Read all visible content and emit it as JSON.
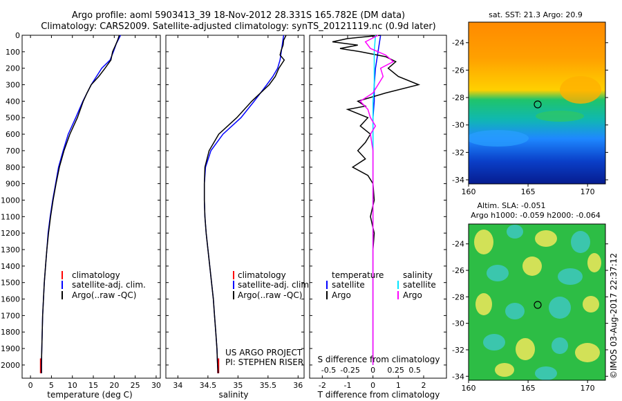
{
  "header": {
    "line1": "Argo profile: aoml 5903413_39 18-Nov-2012 28.331S 165.782E (DM data)",
    "line2": "Climatology: CARS2009. Satellite-adjusted climatology: synTS_20121119.nc (0.9d later)"
  },
  "colors": {
    "climatology": "#ff0000",
    "satellite": "#0000ff",
    "argo": "#000000",
    "argo_salinity": "#ff00ff",
    "satellite_salinity": "#00e5ff"
  },
  "chart_data": [
    {
      "type": "line",
      "panel": "temperature",
      "xlabel": "temperature (deg C)",
      "ylabel": "",
      "xlim": [
        -2,
        31
      ],
      "ylim": [
        2080,
        0
      ],
      "xticks": [
        "0",
        "5",
        "10",
        "15",
        "20",
        "25",
        "30"
      ],
      "xtick_values": [
        0,
        5,
        10,
        15,
        20,
        25,
        30
      ],
      "yticks": [
        "0",
        "100",
        "200",
        "300",
        "400",
        "500",
        "600",
        "700",
        "800",
        "900",
        "1000",
        "1100",
        "1200",
        "1300",
        "1400",
        "1500",
        "1600",
        "1700",
        "1800",
        "1900",
        "2000"
      ],
      "ytick_values": [
        0,
        100,
        200,
        300,
        400,
        500,
        600,
        700,
        800,
        900,
        1000,
        1100,
        1200,
        1300,
        1400,
        1500,
        1600,
        1700,
        1800,
        1900,
        2000
      ],
      "legend": {
        "placement": "lower-center",
        "entries": [
          "climatology",
          "satellite-adj. clim.",
          "Argo(..raw -QC)"
        ]
      },
      "series": [
        {
          "name": "climatology",
          "color": "#ff0000",
          "pressure": [
            1960,
            2050
          ],
          "values": [
            2.5,
            2.5
          ]
        },
        {
          "name": "satellite-adj. clim.",
          "color": "#0000ff",
          "pressure": [
            0,
            50,
            100,
            150,
            200,
            300,
            400,
            500,
            600,
            700,
            800,
            900,
            1000,
            1100,
            1200,
            1300,
            1400,
            1500,
            1600,
            1700,
            1800,
            1900,
            2000,
            2050
          ],
          "values": [
            21.5,
            20.5,
            19.8,
            19.0,
            17.0,
            14.5,
            12.5,
            10.8,
            9.0,
            7.8,
            6.7,
            6.0,
            5.3,
            4.7,
            4.2,
            3.9,
            3.6,
            3.3,
            3.1,
            2.9,
            2.8,
            2.7,
            2.6,
            2.6
          ]
        },
        {
          "name": "Argo(..raw -QC)",
          "color": "#000000",
          "pressure": [
            0,
            30,
            60,
            100,
            150,
            200,
            250,
            300,
            350,
            400,
            500,
            600,
            700,
            800,
            900,
            1000,
            1100,
            1200,
            1300,
            1400,
            1500,
            1600,
            1700,
            1800,
            1900,
            2000,
            2050
          ],
          "values": [
            21.2,
            20.8,
            20.3,
            19.6,
            19.2,
            17.8,
            16.3,
            14.5,
            13.5,
            12.6,
            11.2,
            9.4,
            8.0,
            6.9,
            6.1,
            5.4,
            4.8,
            4.3,
            3.9,
            3.6,
            3.3,
            3.1,
            2.9,
            2.8,
            2.7,
            2.6,
            2.6
          ]
        }
      ]
    },
    {
      "type": "line",
      "panel": "salinity",
      "xlabel": "salinity",
      "xlim": [
        33.8,
        36.1
      ],
      "ylim": [
        2080,
        0
      ],
      "xticks": [
        "34",
        "34.5",
        "35",
        "35.5",
        "36"
      ],
      "xtick_values": [
        34,
        34.5,
        35,
        35.5,
        36
      ],
      "legend": {
        "placement": "lower-center",
        "entries": [
          "climatology",
          "satellite-adj. clim.",
          "Argo(..raw -QC)"
        ]
      },
      "annotations": [
        "US ARGO PROJECT",
        "PI: STEPHEN RISER"
      ],
      "series": [
        {
          "name": "climatology",
          "color": "#ff0000",
          "pressure": [
            1960,
            2050
          ],
          "values": [
            34.67,
            34.67
          ]
        },
        {
          "name": "satellite-adj. clim.",
          "color": "#0000ff",
          "pressure": [
            0,
            50,
            100,
            150,
            200,
            250,
            300,
            400,
            500,
            600,
            700,
            800,
            900,
            1000,
            1100,
            1200,
            1300,
            1400,
            1500,
            1600,
            1700,
            1800,
            1900,
            2000,
            2050
          ],
          "values": [
            35.76,
            35.74,
            35.72,
            35.7,
            35.66,
            35.58,
            35.48,
            35.27,
            35.05,
            34.75,
            34.55,
            34.46,
            34.44,
            34.44,
            34.45,
            34.47,
            34.5,
            34.53,
            34.56,
            34.59,
            34.61,
            34.63,
            34.65,
            34.66,
            34.67
          ]
        },
        {
          "name": "Argo(..raw -QC)",
          "color": "#000000",
          "pressure": [
            0,
            30,
            60,
            90,
            120,
            150,
            200,
            250,
            300,
            400,
            500,
            600,
            700,
            800,
            900,
            1000,
            1100,
            1200,
            1300,
            1400,
            1500,
            1600,
            1700,
            1800,
            1900,
            2000,
            2050
          ],
          "values": [
            35.8,
            35.76,
            35.75,
            35.72,
            35.7,
            35.77,
            35.68,
            35.62,
            35.52,
            35.23,
            34.98,
            34.68,
            34.52,
            34.45,
            34.44,
            34.44,
            34.45,
            34.47,
            34.5,
            34.53,
            34.56,
            34.59,
            34.61,
            34.63,
            34.65,
            34.66,
            34.67
          ]
        }
      ]
    },
    {
      "type": "line",
      "panel": "difference",
      "xlabel": "T difference from climatology",
      "xlabel_top": "S difference from climatology",
      "xlim": [
        -2.5,
        2.9
      ],
      "ylim": [
        2080,
        0
      ],
      "xticks": [
        "-2",
        "-1",
        "0",
        "1",
        "2"
      ],
      "xtick_values": [
        -2,
        -1,
        0,
        1,
        2
      ],
      "sticks": [
        "-0.5",
        "-0.25",
        "0",
        "0.25",
        "0.5"
      ],
      "stick_values": [
        -1.75,
        -0.9,
        0,
        0.9,
        1.65
      ],
      "legend": {
        "placement": "lower-center",
        "temperature": {
          "title": "temperature",
          "entries": [
            "satellite",
            "Argo"
          ]
        },
        "salinity": {
          "title": "salinity",
          "entries": [
            "satellite",
            "Argo"
          ]
        }
      },
      "series": [
        {
          "name": "temperature satellite",
          "color": "#0000ff",
          "pressure": [
            0,
            100,
            200,
            300,
            400,
            500,
            600,
            700,
            800,
            900,
            1000,
            1200,
            1400,
            1600,
            1800,
            2000
          ],
          "values": [
            0.3,
            0.2,
            0.1,
            0.05,
            0.05,
            0,
            0,
            0,
            0,
            0,
            0,
            0,
            0,
            0,
            0,
            0
          ]
        },
        {
          "name": "temperature Argo",
          "color": "#000000",
          "pressure": [
            0,
            20,
            40,
            60,
            80,
            100,
            130,
            160,
            200,
            250,
            300,
            350,
            400,
            430,
            450,
            500,
            550,
            600,
            650,
            700,
            750,
            800,
            850,
            900,
            1000,
            1100,
            1200,
            1300,
            1400,
            1600,
            1800,
            2000
          ],
          "values": [
            0.3,
            -1.0,
            -1.6,
            -0.6,
            -1.3,
            -0.5,
            0.5,
            0.9,
            0.6,
            1.0,
            1.8,
            0.5,
            -0.6,
            -0.3,
            -1.0,
            -0.2,
            -0.5,
            -0.1,
            -0.3,
            -0.6,
            -0.3,
            -0.8,
            -0.2,
            0,
            0.05,
            -0.1,
            0.05,
            0,
            0,
            0,
            0,
            0
          ]
        },
        {
          "name": "salinity satellite",
          "color": "#00e5ff",
          "pressure": [
            0,
            100,
            200,
            300,
            400,
            500,
            600,
            800,
            1000,
            1200,
            1500,
            1800,
            2000
          ],
          "values": [
            0.1,
            0.05,
            0.05,
            0.05,
            0,
            0,
            0,
            0,
            0,
            0,
            0,
            0,
            0
          ]
        },
        {
          "name": "salinity Argo",
          "color": "#ff00ff",
          "pressure": [
            0,
            40,
            80,
            120,
            160,
            200,
            250,
            300,
            350,
            400,
            450,
            500,
            550,
            600,
            700,
            800,
            900,
            1000,
            1200,
            1500,
            1800,
            2000
          ],
          "values": [
            0.2,
            -0.3,
            -0.1,
            0.5,
            0.8,
            0.3,
            0.4,
            0.2,
            0,
            -0.5,
            -0.2,
            -0.1,
            0.1,
            -0.1,
            0,
            0,
            0,
            0,
            0,
            0,
            0,
            0
          ]
        }
      ]
    },
    {
      "type": "heatmap",
      "panel": "sst-map",
      "title": "sat. SST: 21.3  Argo: 20.9",
      "xlim": [
        160,
        171.5
      ],
      "ylim": [
        -34.3,
        -22.5
      ],
      "xticks": [
        "160",
        "165",
        "170"
      ],
      "xtick_values": [
        160,
        165,
        170
      ],
      "yticks": [
        "-24",
        "-26",
        "-28",
        "-30",
        "-32",
        "-34"
      ],
      "ytick_values": [
        -24,
        -26,
        -28,
        -30,
        -32,
        -34
      ],
      "marker": {
        "lon": 165.78,
        "lat": -28.33
      }
    },
    {
      "type": "heatmap",
      "panel": "sla-map",
      "title": "Altim. SLA: -0.051",
      "subtitle": "Argo h1000: -0.059  h2000: -0.064",
      "xlim": [
        160,
        171.5
      ],
      "ylim": [
        -34.3,
        -22.5
      ],
      "xticks": [
        "160",
        "165",
        "170"
      ],
      "xtick_values": [
        160,
        165,
        170
      ],
      "yticks": [
        "-24",
        "-26",
        "-28",
        "-30",
        "-32",
        "-34"
      ],
      "ytick_values": [
        -24,
        -26,
        -28,
        -30,
        -32,
        -34
      ],
      "marker": {
        "lon": 165.78,
        "lat": -28.33
      }
    }
  ],
  "credit": "©IMOS 03-Aug-2017 22:37:12"
}
